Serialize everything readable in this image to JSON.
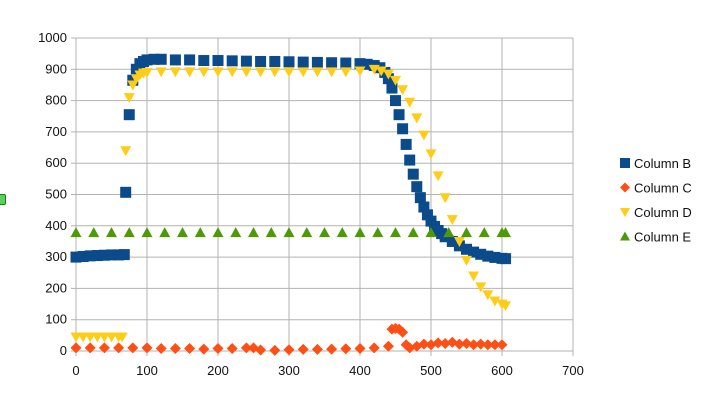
{
  "chart_data": {
    "type": "scatter",
    "title": "",
    "xlabel": "",
    "ylabel": "",
    "xlim": [
      0,
      700
    ],
    "ylim": [
      0,
      1000
    ],
    "x_ticks": [
      0,
      100,
      200,
      300,
      400,
      500,
      600,
      700
    ],
    "y_ticks": [
      0,
      100,
      200,
      300,
      400,
      500,
      600,
      700,
      800,
      900,
      1000
    ],
    "grid": true,
    "legend_position": "right",
    "series": [
      {
        "name": "Column B",
        "color": "#0b4a8b",
        "marker": "square",
        "points": [
          [
            0,
            300
          ],
          [
            10,
            302
          ],
          [
            20,
            304
          ],
          [
            30,
            305
          ],
          [
            40,
            306
          ],
          [
            50,
            307
          ],
          [
            60,
            307
          ],
          [
            68,
            308
          ],
          [
            70,
            507
          ],
          [
            75,
            755
          ],
          [
            80,
            865
          ],
          [
            85,
            900
          ],
          [
            90,
            918
          ],
          [
            95,
            925
          ],
          [
            100,
            930
          ],
          [
            110,
            932
          ],
          [
            120,
            932
          ],
          [
            140,
            930
          ],
          [
            160,
            930
          ],
          [
            180,
            928
          ],
          [
            200,
            928
          ],
          [
            220,
            927
          ],
          [
            240,
            926
          ],
          [
            260,
            925
          ],
          [
            280,
            925
          ],
          [
            300,
            924
          ],
          [
            320,
            923
          ],
          [
            340,
            922
          ],
          [
            360,
            921
          ],
          [
            380,
            920
          ],
          [
            400,
            918
          ],
          [
            410,
            916
          ],
          [
            420,
            912
          ],
          [
            428,
            905
          ],
          [
            435,
            890
          ],
          [
            440,
            870
          ],
          [
            445,
            840
          ],
          [
            450,
            800
          ],
          [
            455,
            755
          ],
          [
            460,
            710
          ],
          [
            465,
            660
          ],
          [
            470,
            610
          ],
          [
            475,
            565
          ],
          [
            480,
            525
          ],
          [
            485,
            490
          ],
          [
            490,
            460
          ],
          [
            495,
            435
          ],
          [
            500,
            415
          ],
          [
            505,
            398
          ],
          [
            510,
            385
          ],
          [
            515,
            375
          ],
          [
            520,
            365
          ],
          [
            530,
            350
          ],
          [
            540,
            336
          ],
          [
            550,
            325
          ],
          [
            560,
            316
          ],
          [
            570,
            309
          ],
          [
            580,
            303
          ],
          [
            590,
            299
          ],
          [
            600,
            296
          ],
          [
            605,
            295
          ]
        ]
      },
      {
        "name": "Column C",
        "color": "#ff4f14",
        "marker": "diamond",
        "points": [
          [
            0,
            10
          ],
          [
            20,
            10
          ],
          [
            40,
            10
          ],
          [
            60,
            10
          ],
          [
            80,
            10
          ],
          [
            100,
            10
          ],
          [
            120,
            8
          ],
          [
            140,
            8
          ],
          [
            160,
            8
          ],
          [
            180,
            6
          ],
          [
            200,
            8
          ],
          [
            220,
            8
          ],
          [
            240,
            10
          ],
          [
            250,
            10
          ],
          [
            260,
            3
          ],
          [
            280,
            2
          ],
          [
            300,
            4
          ],
          [
            320,
            5
          ],
          [
            340,
            5
          ],
          [
            360,
            6
          ],
          [
            380,
            7
          ],
          [
            400,
            8
          ],
          [
            420,
            10
          ],
          [
            440,
            15
          ],
          [
            445,
            70
          ],
          [
            450,
            72
          ],
          [
            455,
            70
          ],
          [
            460,
            60
          ],
          [
            465,
            20
          ],
          [
            470,
            10
          ],
          [
            480,
            15
          ],
          [
            490,
            22
          ],
          [
            500,
            20
          ],
          [
            510,
            26
          ],
          [
            520,
            24
          ],
          [
            530,
            28
          ],
          [
            540,
            22
          ],
          [
            550,
            24
          ],
          [
            560,
            20
          ],
          [
            570,
            22
          ],
          [
            580,
            20
          ],
          [
            590,
            20
          ],
          [
            600,
            20
          ]
        ]
      },
      {
        "name": "Column D",
        "color": "#ffcc16",
        "marker": "triangle-down",
        "points": [
          [
            0,
            45
          ],
          [
            10,
            45
          ],
          [
            20,
            45
          ],
          [
            30,
            45
          ],
          [
            40,
            45
          ],
          [
            50,
            45
          ],
          [
            60,
            45
          ],
          [
            65,
            45
          ],
          [
            70,
            640
          ],
          [
            75,
            810
          ],
          [
            80,
            850
          ],
          [
            85,
            870
          ],
          [
            90,
            882
          ],
          [
            95,
            888
          ],
          [
            100,
            890
          ],
          [
            120,
            892
          ],
          [
            140,
            892
          ],
          [
            160,
            892
          ],
          [
            180,
            892
          ],
          [
            200,
            892
          ],
          [
            220,
            892
          ],
          [
            240,
            892
          ],
          [
            260,
            892
          ],
          [
            280,
            892
          ],
          [
            300,
            892
          ],
          [
            320,
            892
          ],
          [
            340,
            892
          ],
          [
            360,
            892
          ],
          [
            380,
            892
          ],
          [
            400,
            895
          ],
          [
            420,
            900
          ],
          [
            430,
            895
          ],
          [
            440,
            885
          ],
          [
            450,
            865
          ],
          [
            460,
            835
          ],
          [
            470,
            795
          ],
          [
            480,
            745
          ],
          [
            490,
            690
          ],
          [
            500,
            630
          ],
          [
            510,
            560
          ],
          [
            520,
            490
          ],
          [
            530,
            420
          ],
          [
            540,
            350
          ],
          [
            550,
            290
          ],
          [
            560,
            240
          ],
          [
            570,
            205
          ],
          [
            580,
            180
          ],
          [
            590,
            160
          ],
          [
            600,
            150
          ],
          [
            605,
            145
          ]
        ]
      },
      {
        "name": "Column E",
        "color": "#4e9a06",
        "marker": "triangle-up",
        "points": [
          [
            0,
            378
          ],
          [
            25,
            378
          ],
          [
            50,
            378
          ],
          [
            75,
            378
          ],
          [
            100,
            378
          ],
          [
            125,
            378
          ],
          [
            150,
            378
          ],
          [
            175,
            378
          ],
          [
            200,
            378
          ],
          [
            225,
            378
          ],
          [
            250,
            378
          ],
          [
            275,
            378
          ],
          [
            300,
            378
          ],
          [
            325,
            378
          ],
          [
            350,
            378
          ],
          [
            375,
            378
          ],
          [
            400,
            378
          ],
          [
            425,
            378
          ],
          [
            450,
            378
          ],
          [
            475,
            378
          ],
          [
            500,
            378
          ],
          [
            525,
            378
          ],
          [
            550,
            378
          ],
          [
            575,
            378
          ],
          [
            600,
            378
          ],
          [
            605,
            378
          ]
        ]
      }
    ]
  }
}
